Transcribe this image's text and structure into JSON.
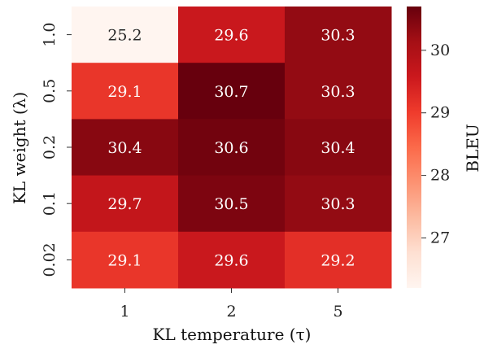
{
  "chart_data": {
    "type": "heatmap",
    "xlabel": "KL temperature (τ)",
    "ylabel": "KL weight (λ)",
    "x_categories": [
      "1",
      "2",
      "5"
    ],
    "y_categories": [
      "1.0",
      "0.5",
      "0.2",
      "0.1",
      "0.02"
    ],
    "values": [
      [
        25.2,
        29.6,
        30.3
      ],
      [
        29.1,
        30.7,
        30.3
      ],
      [
        30.4,
        30.6,
        30.4
      ],
      [
        29.7,
        30.5,
        30.3
      ],
      [
        29.1,
        29.6,
        29.2
      ]
    ],
    "colorbar": {
      "label": "BLEU",
      "range": [
        26.2,
        30.7
      ],
      "ticks": [
        "27",
        "28",
        "29",
        "30"
      ],
      "colormap": "Reds"
    },
    "grid": false
  }
}
